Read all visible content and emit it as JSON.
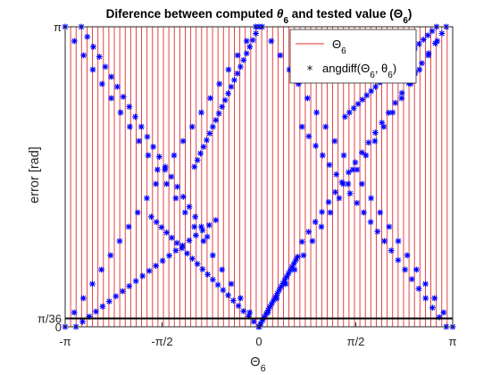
{
  "chart_data": {
    "type": "scatter",
    "title": "Diference between computed θ6 and tested value (Θ6)",
    "title_parts": {
      "prefix": "Diference between computed ",
      "theta": "θ",
      "sub1": "6",
      "middle": " and tested value (",
      "Theta": "Θ",
      "sub2": "6",
      "suffix": ")"
    },
    "xlabel": {
      "main": "Θ",
      "sub": "6"
    },
    "ylabel": "error [rad]",
    "xlim": [
      -3.1416,
      3.1416
    ],
    "ylim": [
      0,
      3.1416
    ],
    "x_ticks": [
      {
        "value": -3.1416,
        "label": "-π"
      },
      {
        "value": -1.5708,
        "label": "-π/2"
      },
      {
        "value": 0,
        "label": "0"
      },
      {
        "value": 1.5708,
        "label": "π/2"
      },
      {
        "value": 3.1416,
        "label": "π"
      }
    ],
    "y_ticks": [
      {
        "value": 0,
        "label": "0"
      },
      {
        "value": 0.0873,
        "label": "π/36"
      },
      {
        "value": 3.1416,
        "label": "π"
      }
    ],
    "threshold_line": {
      "y": 0.0873,
      "color": "#000000"
    },
    "vertical_lines": {
      "count": 72,
      "from": -3.1416,
      "to": 3.1416,
      "color": "#e03030"
    },
    "legend": {
      "position": "top-right",
      "entries": [
        {
          "main": "Θ",
          "sub": "6",
          "suffix": "",
          "color": "#e03030",
          "marker": "line"
        },
        {
          "main": "angdiff(Θ",
          "sub": "6",
          "mid": ", θ",
          "sub2": "6",
          "suffix": ")",
          "color": "#0000ff",
          "marker": "*"
        }
      ]
    },
    "series": [
      {
        "marker": "*",
        "color": "#0000ff",
        "curves": [
          {
            "x": [
              -3.1416,
              -0.0524
            ],
            "y": [
              0,
              3.1416
            ]
          },
          {
            "x": [
              -3.1416,
              0.0
            ],
            "y": [
              3.1416,
              0
            ]
          },
          {
            "x": [
              0.0,
              3.0369
            ],
            "y": [
              0,
              3.1416
            ]
          },
          {
            "x": [
              0.0524,
              3.1416
            ],
            "y": [
              3.1416,
              0
            ]
          },
          {
            "x": [
              -2.8798,
              -0.8378
            ],
            "y": [
              3.1416,
              0.9425
            ]
          },
          {
            "x": [
              -1.7453,
              0.0
            ],
            "y": [
              1.152,
              0
            ]
          },
          {
            "x": [
              0.0,
              0.6283
            ],
            "y": [
              0,
              0.733
            ]
          },
          {
            "x": [
              0.6981,
              2.9671
            ],
            "y": [
              0.8901,
              3.0718
            ]
          },
          {
            "x": [
              -2.9671,
              -0.6981
            ],
            "y": [
              0,
              1.117
            ]
          },
          {
            "x": [
              -1.0472,
              0.0
            ],
            "y": [
              1.6755,
              3.1416
            ]
          },
          {
            "x": [
              0.6981,
              3.0369
            ],
            "y": [
              2.0944,
              0
            ]
          },
          {
            "x": [
              1.3963,
              2.8798
            ],
            "y": [
              2.1991,
              3.1416
            ]
          }
        ],
        "points_per_curve": 22
      }
    ],
    "colors": {
      "axes": "#262626",
      "frame": "#262626",
      "background": "#ffffff"
    }
  }
}
